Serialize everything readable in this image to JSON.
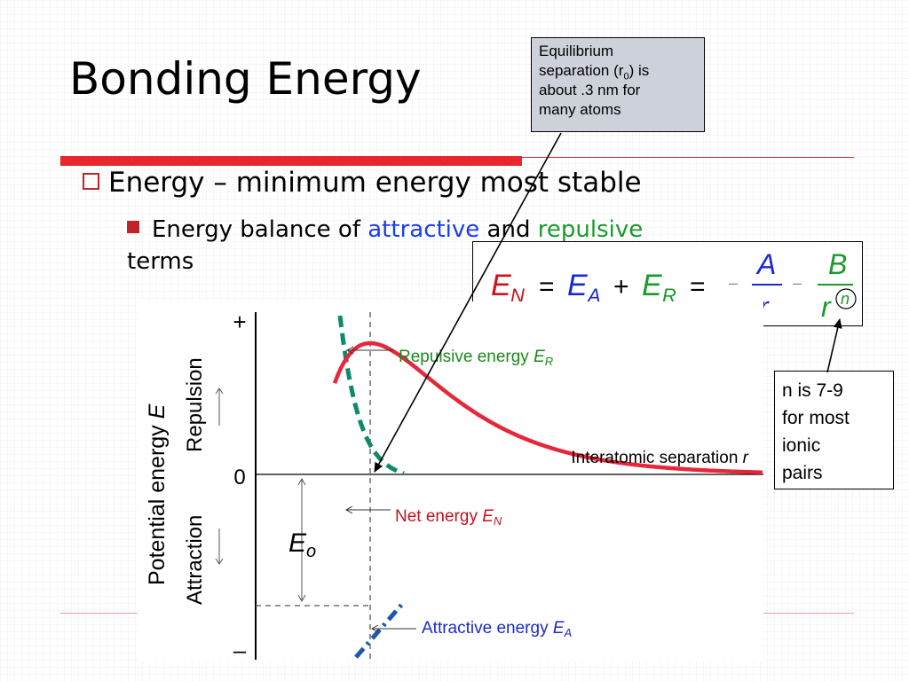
{
  "slide": {
    "title": "Bonding Energy",
    "bullet1": "Energy – minimum energy most stable",
    "bullet2_pre": "Energy balance of ",
    "bullet2_attractive": "attractive",
    "bullet2_and": " and ",
    "bullet2_repulsive": "repulsive",
    "bullet2_post": "terms"
  },
  "callout_equilibrium": {
    "line1": "Equilibrium",
    "line2_pre": "separation (r",
    "line2_sub": "0",
    "line2_post": ") is",
    "line3": "about .3 nm for",
    "line4": "many atoms"
  },
  "callout_n": {
    "line1": "n is 7-9",
    "line2": "for most",
    "line3": "ionic",
    "line4": "pairs"
  },
  "formula": {
    "E": "E",
    "sub_N": "N",
    "sub_A": "A",
    "sub_R": "R",
    "equals": "=",
    "plus": "+",
    "minus": "–",
    "num_A": "A",
    "num_B": "B",
    "den_r": "r",
    "exp_n": "n"
  },
  "diagram": {
    "plus_label": "+",
    "minus_label": "–",
    "zero_label": "0",
    "ylabel_main": "Potential energy",
    "ylabel_var": "E",
    "ylabel_repulsion": "Repulsion",
    "ylabel_attraction": "Attraction",
    "eo_main": "E",
    "eo_sub": "o",
    "xlabel_main": "Interatomic separation ",
    "xlabel_var": "r",
    "label_repulsive_main": "Repulsive energy ",
    "label_repulsive_var": "E",
    "label_repulsive_sub": "R",
    "label_net_main": "Net energy ",
    "label_net_var": "E",
    "label_net_sub": "N",
    "label_attractive_main": "Attractive energy ",
    "label_attractive_var": "E",
    "label_attractive_sub": "A",
    "colors": {
      "net": "#e8263a",
      "repulsive": "#0e8a6a",
      "attractive": "#1a5aa8",
      "net_label": "#c0141e",
      "repulsive_label": "#1a8a1a",
      "attractive_label": "#1a2ad0"
    }
  }
}
